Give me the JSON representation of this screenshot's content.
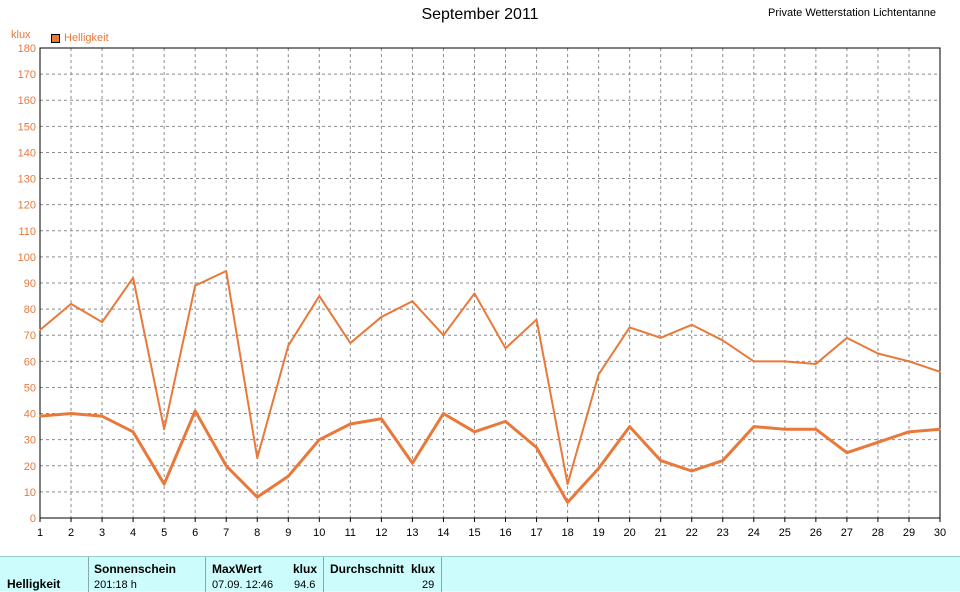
{
  "header": {
    "title": "September 2011",
    "station": "Private Wetterstation Lichtentanne",
    "unit": "klux",
    "legend_label": "Helligkeit"
  },
  "footer": {
    "row_label": "Helligkeit",
    "sunshine_header": "Sonnenschein",
    "sunshine_value": "201:18 h",
    "max_header": "MaxWert",
    "max_unit": "klux",
    "max_date": "07.09.  12:46",
    "max_value": "94.6",
    "avg_header": "Durchschnitt",
    "avg_unit": "klux",
    "avg_value": "29"
  },
  "colors": {
    "series": "#e8793a",
    "grid": "#8c8c8c",
    "footer_bg": "#ccfcfc"
  },
  "chart_data": {
    "type": "line",
    "title": "September 2011",
    "ylabel": "klux",
    "ylim": [
      0,
      180
    ],
    "yticks": [
      0,
      10,
      20,
      30,
      40,
      50,
      60,
      70,
      80,
      90,
      100,
      110,
      120,
      130,
      140,
      150,
      160,
      170,
      180
    ],
    "x": [
      1,
      2,
      3,
      4,
      5,
      6,
      7,
      8,
      9,
      10,
      11,
      12,
      13,
      14,
      15,
      16,
      17,
      18,
      19,
      20,
      21,
      22,
      23,
      24,
      25,
      26,
      27,
      28,
      29,
      30
    ],
    "grid": true,
    "legend_position": "top-left",
    "series": [
      {
        "name": "Helligkeit",
        "role": "max",
        "values": [
          72,
          82,
          75,
          92,
          34,
          89,
          94.6,
          23,
          66,
          85,
          67,
          77,
          83,
          70,
          86,
          65,
          76,
          13,
          55,
          73,
          69,
          74,
          68,
          60,
          60,
          59,
          69,
          63,
          60,
          56
        ]
      },
      {
        "name": "Helligkeit",
        "role": "mean",
        "values": [
          39,
          40,
          39,
          33,
          13,
          41,
          20,
          8,
          16,
          30,
          36,
          38,
          21,
          40,
          33,
          37,
          27,
          6,
          19,
          35,
          22,
          18,
          22,
          35,
          34,
          34,
          25,
          29,
          33,
          34
        ]
      }
    ]
  }
}
